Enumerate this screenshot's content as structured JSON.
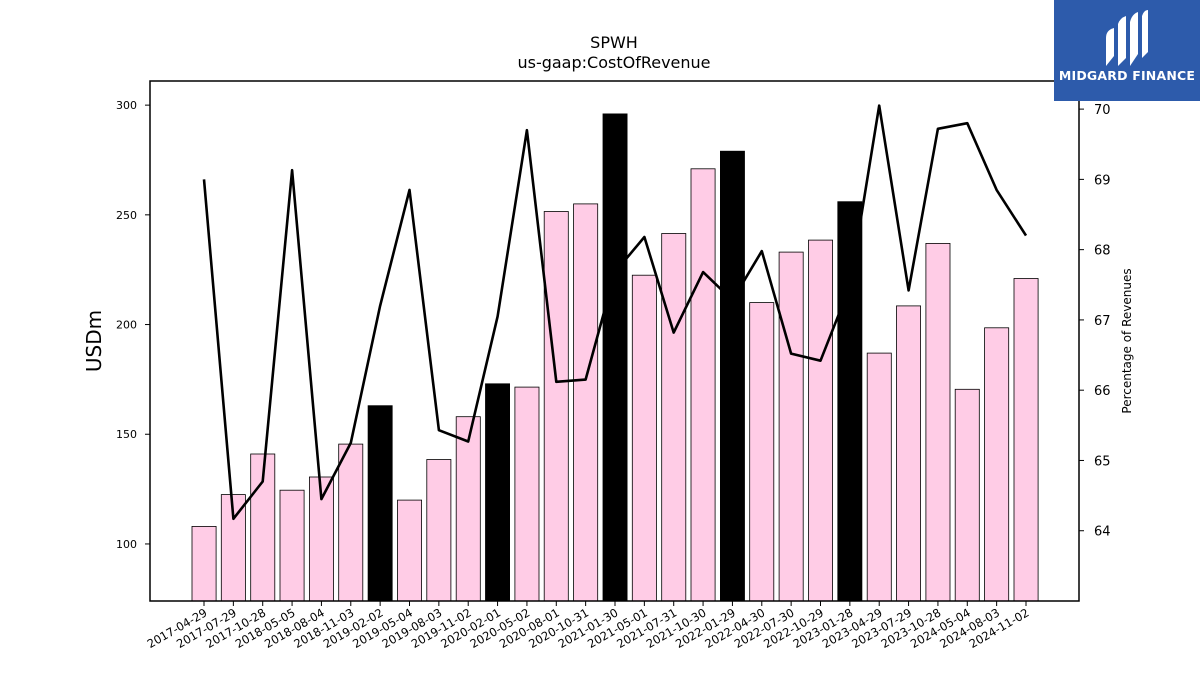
{
  "chart_data": {
    "type": "bar",
    "title": "SPWH",
    "subtitle": "us-gaap:CostOfRevenue",
    "ylabel": "USDm",
    "y2label": "Percentage of Revenues",
    "ylim": [
      74,
      311
    ],
    "y2lim": [
      63,
      70.4
    ],
    "yticks": [
      100,
      150,
      200,
      250,
      300
    ],
    "y2ticks": [
      64,
      65,
      66,
      67,
      68,
      69,
      70
    ],
    "categories": [
      "2017-04-29",
      "2017-07-29",
      "2017-10-28",
      "2018-05-05",
      "2018-08-04",
      "2018-11-03",
      "2019-02-02",
      "2019-05-04",
      "2019-08-03",
      "2019-11-02",
      "2020-02-01",
      "2020-05-02",
      "2020-08-01",
      "2020-10-31",
      "2021-01-30",
      "2021-05-01",
      "2021-07-31",
      "2021-10-30",
      "2022-01-29",
      "2022-04-30",
      "2022-07-30",
      "2022-10-29",
      "2023-01-28",
      "2023-04-29",
      "2023-07-29",
      "2023-10-28",
      "2024-05-04",
      "2024-08-03",
      "2024-11-02"
    ],
    "series": [
      {
        "values": [
          108,
          122.5,
          141,
          124.5,
          130.5,
          145.5,
          163,
          120,
          138.5,
          158,
          173,
          171.5,
          251.5,
          255,
          296,
          222.5,
          241.5,
          271,
          279,
          210,
          233,
          238.5,
          256,
          187,
          208.5,
          237,
          170.5,
          198.5,
          221
        ],
        "highlight": [
          false,
          false,
          false,
          false,
          false,
          false,
          true,
          false,
          false,
          false,
          true,
          false,
          false,
          false,
          true,
          false,
          false,
          false,
          true,
          false,
          false,
          false,
          true,
          false,
          false,
          false,
          false,
          false,
          false
        ],
        "color": "#ffcce6",
        "highlight_color": "#000000"
      },
      {
        "axis": "right",
        "type": "line",
        "values": [
          69.0,
          64.17,
          64.7,
          69.13,
          64.45,
          65.25,
          67.2,
          68.85,
          65.43,
          65.27,
          67.05,
          69.7,
          66.12,
          66.15,
          67.68,
          68.18,
          66.82,
          67.68,
          67.28,
          67.98,
          66.52,
          66.42,
          67.48,
          70.05,
          67.42,
          69.72,
          69.8,
          68.85,
          68.2
        ],
        "color": "#000000"
      }
    ],
    "grid": false,
    "legend": "none"
  },
  "logo": {
    "text": "MIDGARD FINANCE",
    "background": "#2d5bab"
  }
}
